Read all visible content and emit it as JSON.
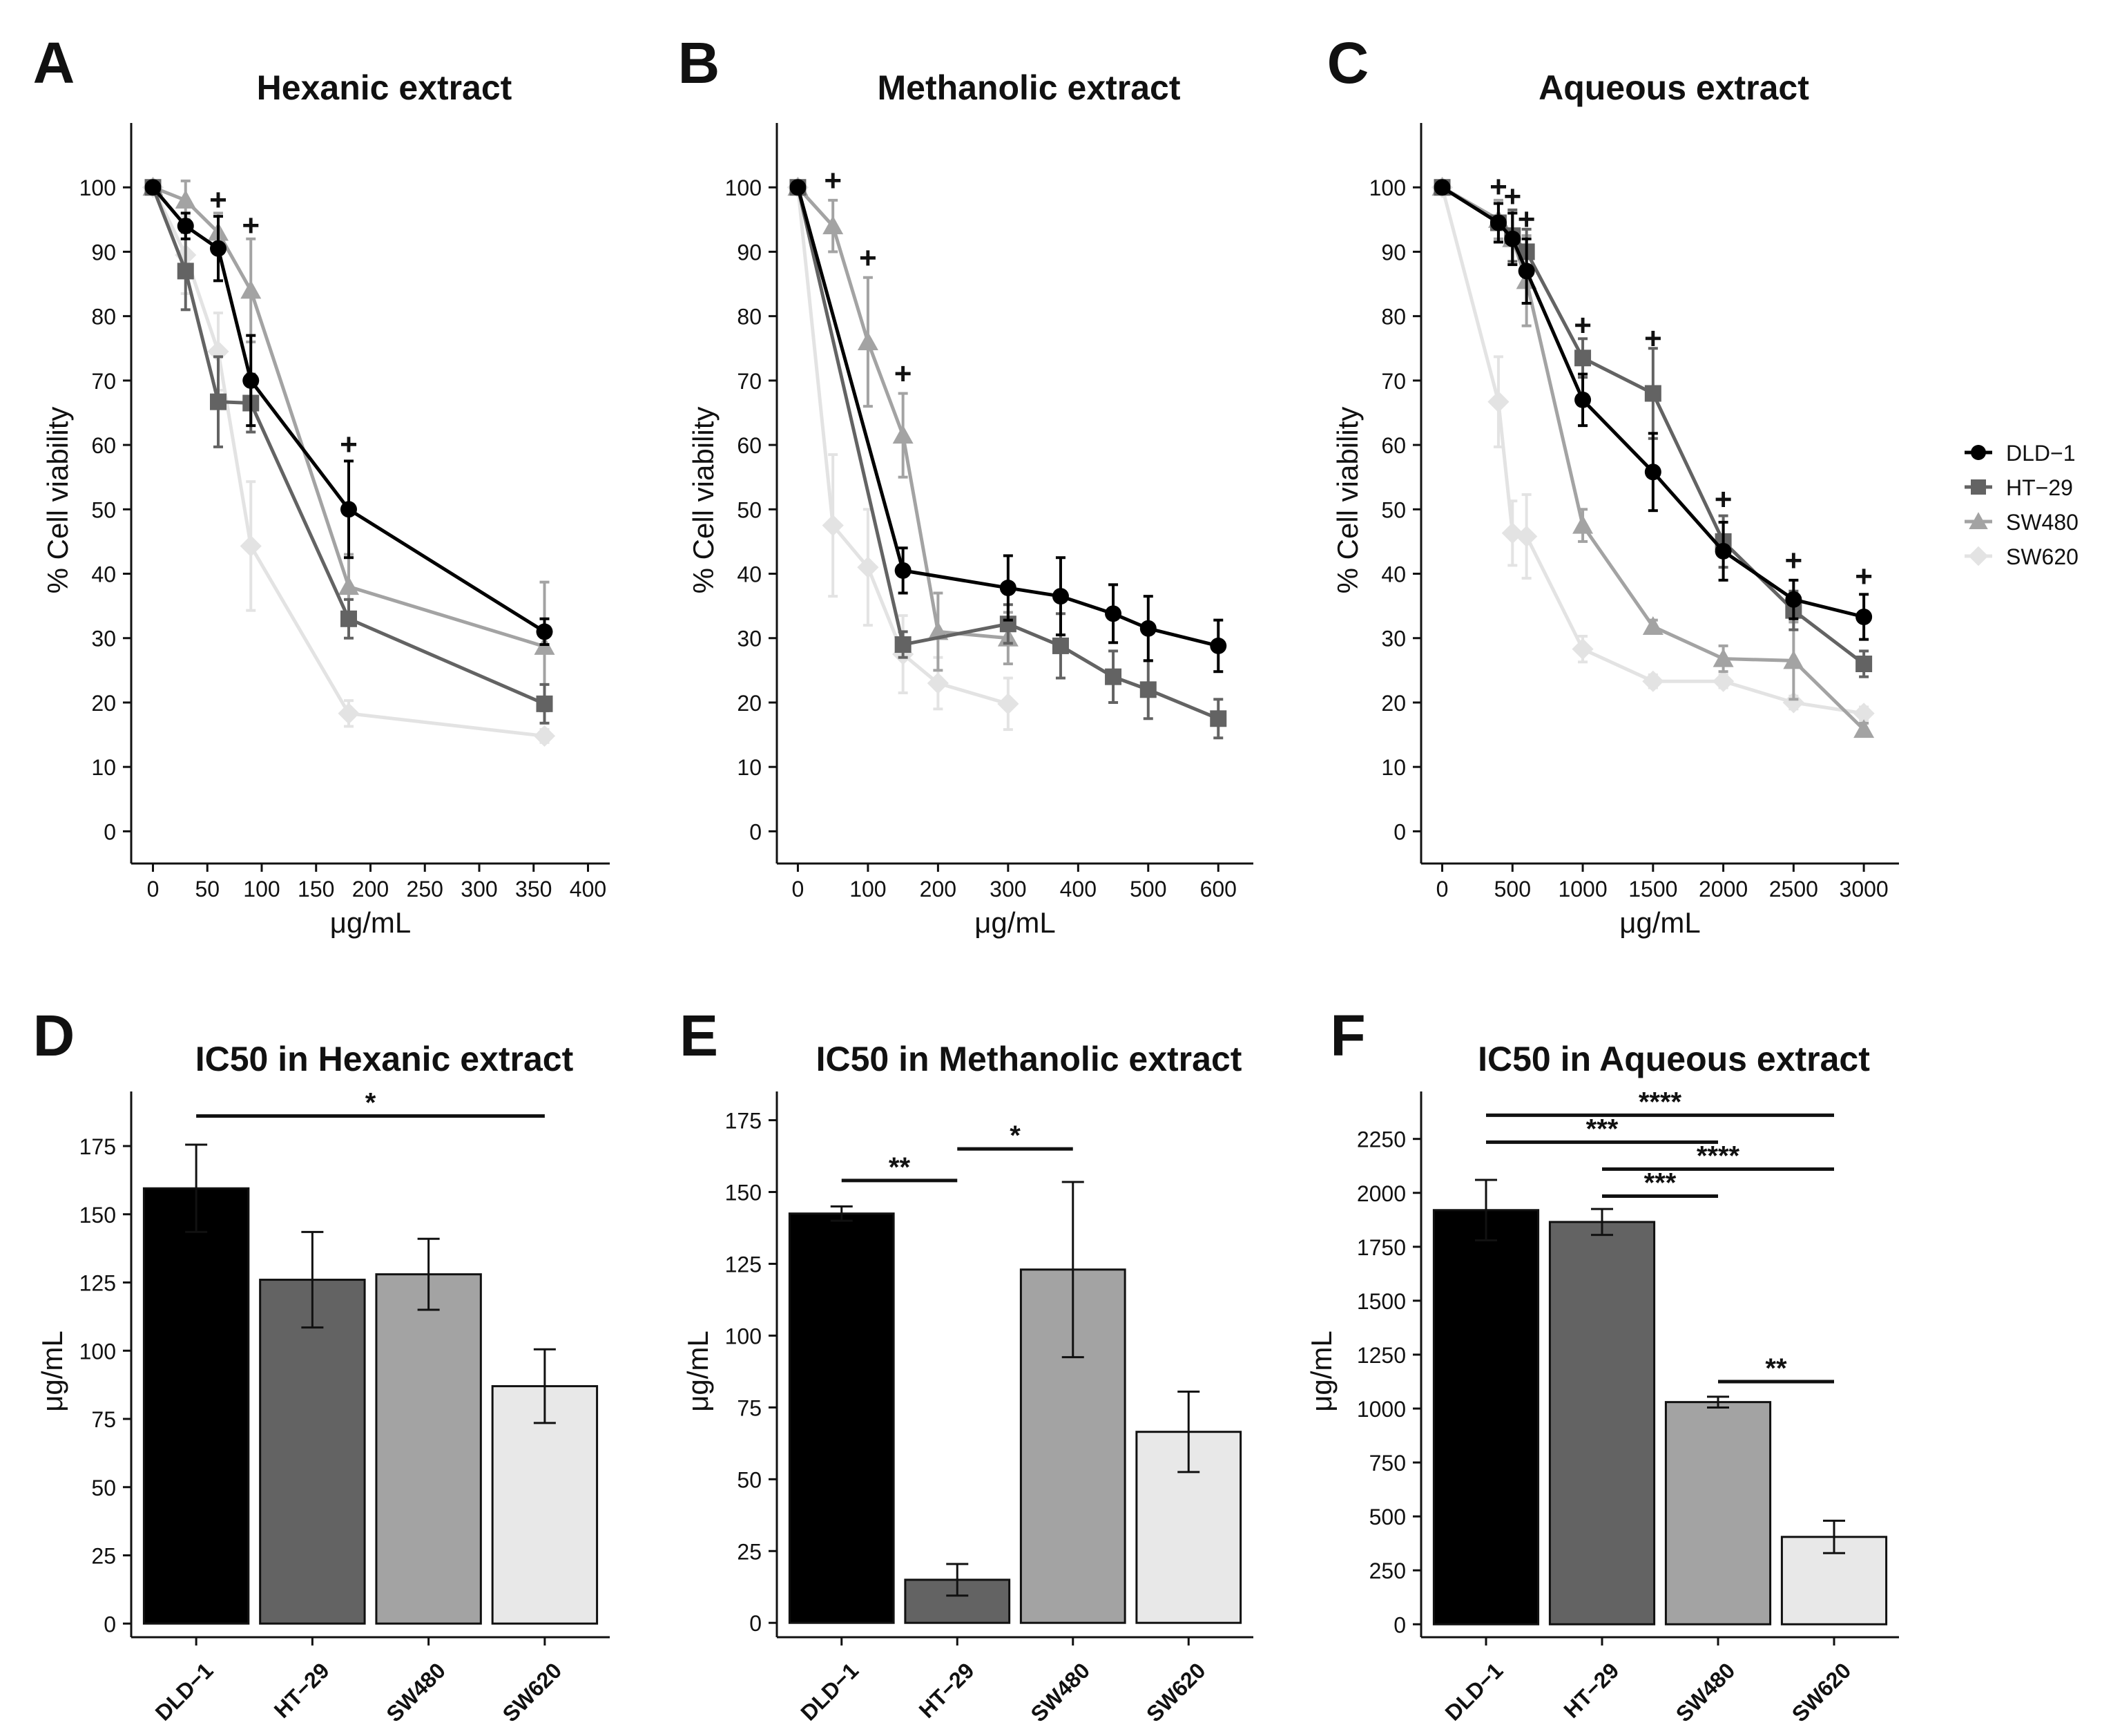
{
  "legend": {
    "placement": "right",
    "entries": [
      {
        "name": "DLD−1",
        "color": "#000000",
        "marker": "circle"
      },
      {
        "name": "HT−29",
        "color": "#636363",
        "marker": "square"
      },
      {
        "name": "SW480",
        "color": "#a3a3a3",
        "marker": "triangle"
      },
      {
        "name": "SW620",
        "color": "#e3e3e3",
        "marker": "diamond"
      }
    ]
  },
  "chart_data": [
    {
      "panel": "A",
      "type": "line",
      "title": "Hexanic extract",
      "xlabel": "μg/mL",
      "ylabel": "% Cell viability",
      "xlim": [
        -20,
        420
      ],
      "ylim": [
        -5,
        110
      ],
      "xticks": [
        0,
        50,
        100,
        150,
        200,
        250,
        300,
        350,
        400
      ],
      "yticks": [
        0,
        10,
        20,
        30,
        40,
        50,
        60,
        70,
        80,
        90,
        100
      ],
      "series": [
        {
          "name": "DLD−1",
          "color": "#000000",
          "marker": "circle",
          "x": [
            0,
            30,
            60,
            90,
            180,
            360
          ],
          "y": [
            100,
            94,
            90.5,
            70,
            50,
            31
          ],
          "err": [
            0,
            2,
            5,
            7,
            7.5,
            2
          ]
        },
        {
          "name": "HT−29",
          "color": "#636363",
          "marker": "square",
          "x": [
            0,
            30,
            60,
            90,
            180,
            360
          ],
          "y": [
            100,
            87,
            66.7,
            66.5,
            33,
            19.8
          ],
          "err": [
            0,
            6,
            7,
            4.5,
            3,
            3
          ]
        },
        {
          "name": "SW480",
          "color": "#a3a3a3",
          "marker": "triangle",
          "x": [
            0,
            30,
            60,
            90,
            180,
            360
          ],
          "y": [
            100,
            98,
            93,
            84,
            38,
            28.7
          ],
          "err": [
            0,
            3,
            3,
            8,
            5,
            10
          ]
        },
        {
          "name": "SW620",
          "color": "#e3e3e3",
          "marker": "diamond",
          "x": [
            0,
            30,
            60,
            90,
            180,
            360
          ],
          "y": [
            100,
            89.5,
            74.5,
            44.3,
            18.3,
            14.8
          ],
          "err": [
            0,
            6,
            6,
            10,
            2,
            1
          ]
        }
      ],
      "annotations": [
        {
          "text": "+",
          "x": 60,
          "y": 98
        },
        {
          "text": "+",
          "x": 90,
          "y": 94
        },
        {
          "text": "+",
          "x": 180,
          "y": 60
        }
      ]
    },
    {
      "panel": "B",
      "type": "line",
      "title": "Methanolic extract",
      "xlabel": "μg/mL",
      "ylabel": "% Cell viability",
      "xlim": [
        -30,
        650
      ],
      "ylim": [
        -5,
        110
      ],
      "xticks": [
        0,
        100,
        200,
        300,
        400,
        500,
        600
      ],
      "yticks": [
        0,
        10,
        20,
        30,
        40,
        50,
        60,
        70,
        80,
        90,
        100
      ],
      "series": [
        {
          "name": "DLD−1",
          "color": "#000000",
          "marker": "circle",
          "x": [
            0,
            150,
            300,
            375,
            450,
            500,
            600
          ],
          "y": [
            100,
            40.5,
            37.8,
            36.5,
            33.8,
            31.5,
            28.8
          ],
          "err": [
            0,
            3.5,
            5,
            6,
            4.5,
            5,
            4
          ]
        },
        {
          "name": "HT−29",
          "color": "#636363",
          "marker": "square",
          "x": [
            0,
            150,
            300,
            375,
            450,
            500,
            600
          ],
          "y": [
            100,
            29,
            32.2,
            28.8,
            24,
            22,
            17.5
          ],
          "err": [
            0,
            2,
            3,
            5,
            4,
            4.5,
            3
          ]
        },
        {
          "name": "SW480",
          "color": "#a3a3a3",
          "marker": "triangle",
          "x": [
            0,
            50,
            100,
            150,
            200,
            300
          ],
          "y": [
            100,
            94,
            76,
            61.5,
            31,
            30
          ],
          "err": [
            0,
            4,
            10,
            6.5,
            6,
            4
          ]
        },
        {
          "name": "SW620",
          "color": "#e3e3e3",
          "marker": "diamond",
          "x": [
            0,
            50,
            100,
            150,
            200,
            300
          ],
          "y": [
            100,
            47.5,
            41,
            27.5,
            23,
            19.8
          ],
          "err": [
            0,
            11,
            9,
            6,
            4,
            4
          ]
        }
      ],
      "annotations": [
        {
          "text": "+",
          "x": 50,
          "y": 101
        },
        {
          "text": "+",
          "x": 100,
          "y": 89
        },
        {
          "text": "+",
          "x": 150,
          "y": 71
        }
      ]
    },
    {
      "panel": "C",
      "type": "line",
      "title": "Aqueous extract",
      "xlabel": "μg/mL",
      "ylabel": "% Cell viability",
      "xlim": [
        -150,
        3250
      ],
      "ylim": [
        -5,
        110
      ],
      "xticks": [
        0,
        500,
        1000,
        1500,
        2000,
        2500,
        3000
      ],
      "yticks": [
        0,
        10,
        20,
        30,
        40,
        50,
        60,
        70,
        80,
        90,
        100
      ],
      "series": [
        {
          "name": "DLD−1",
          "color": "#000000",
          "marker": "circle",
          "x": [
            0,
            400,
            500,
            600,
            1000,
            1500,
            2000,
            2500,
            3000
          ],
          "y": [
            100,
            94.5,
            92,
            87,
            67,
            55.8,
            43.5,
            36,
            33.3
          ],
          "err": [
            0,
            3,
            4,
            5,
            4,
            6,
            4.5,
            3,
            3.5
          ]
        },
        {
          "name": "HT−29",
          "color": "#636363",
          "marker": "square",
          "x": [
            0,
            400,
            500,
            600,
            1000,
            1500,
            2000,
            2500,
            3000
          ],
          "y": [
            100,
            94.5,
            92.5,
            90,
            73.5,
            68,
            45,
            34.3,
            26
          ],
          "err": [
            0,
            3,
            4,
            3.5,
            3,
            7,
            4,
            3,
            2
          ]
        },
        {
          "name": "SW480",
          "color": "#a3a3a3",
          "marker": "triangle",
          "x": [
            0,
            400,
            500,
            600,
            1000,
            1500,
            2000,
            2500,
            3000
          ],
          "y": [
            100,
            95,
            92,
            85.5,
            47.5,
            31.8,
            26.8,
            26.5,
            15.8
          ],
          "err": [
            0,
            3,
            4,
            7,
            2.5,
            1,
            2,
            6,
            1
          ]
        },
        {
          "name": "SW620",
          "color": "#e3e3e3",
          "marker": "diamond",
          "x": [
            0,
            400,
            500,
            600,
            1000,
            1500,
            2000,
            2500,
            3000
          ],
          "y": [
            100,
            66.7,
            46.3,
            45.8,
            28.3,
            23.3,
            23.3,
            20,
            18.3
          ],
          "err": [
            0,
            7,
            5,
            6.5,
            2,
            1,
            1,
            1,
            1
          ]
        }
      ],
      "annotations": [
        {
          "text": "+",
          "x": 400,
          "y": 100
        },
        {
          "text": "+",
          "x": 500,
          "y": 98.5
        },
        {
          "text": "+",
          "x": 600,
          "y": 95
        },
        {
          "text": "+",
          "x": 1000,
          "y": 78.5
        },
        {
          "text": "+",
          "x": 1500,
          "y": 76.5
        },
        {
          "text": "+",
          "x": 2000,
          "y": 51.5
        },
        {
          "text": "+",
          "x": 2500,
          "y": 42
        },
        {
          "text": "+",
          "x": 3000,
          "y": 39.5
        }
      ]
    },
    {
      "panel": "D",
      "type": "bar",
      "title": "IC50 in Hexanic extract",
      "ylabel": "μg/mL",
      "ylim": [
        -5,
        195
      ],
      "yticks": [
        0,
        25,
        50,
        75,
        100,
        125,
        150,
        175
      ],
      "categories": [
        "DLD−1",
        "HT−29",
        "SW480",
        "SW620"
      ],
      "values": [
        159.5,
        126,
        128,
        87
      ],
      "err": [
        16,
        17.5,
        13,
        13.5
      ],
      "colors": [
        "#000000",
        "#636363",
        "#a3a3a3",
        "#e8e8e8"
      ],
      "significance": [
        {
          "from": 0,
          "to": 3,
          "level": 186,
          "label": "*"
        }
      ]
    },
    {
      "panel": "E",
      "type": "bar",
      "title": "IC50 in Methanolic extract",
      "ylabel": "μg/mL",
      "ylim": [
        -5,
        185
      ],
      "yticks": [
        0,
        25,
        50,
        75,
        100,
        125,
        150,
        175
      ],
      "categories": [
        "DLD−1",
        "HT−29",
        "SW480",
        "SW620"
      ],
      "values": [
        142.5,
        15,
        123,
        66.5
      ],
      "err": [
        2.5,
        5.5,
        30.5,
        14
      ],
      "colors": [
        "#000000",
        "#636363",
        "#a3a3a3",
        "#e8e8e8"
      ],
      "significance": [
        {
          "from": 0,
          "to": 1,
          "level": 154,
          "label": "**"
        },
        {
          "from": 1,
          "to": 2,
          "level": 165,
          "label": "*"
        }
      ]
    },
    {
      "panel": "F",
      "type": "bar",
      "title": "IC50 in Aqueous extract",
      "ylabel": "μg/mL",
      "ylim": [
        -60,
        2470
      ],
      "yticks": [
        0,
        250,
        500,
        750,
        1000,
        1250,
        1500,
        1750,
        2000,
        2250
      ],
      "categories": [
        "DLD−1",
        "HT−29",
        "SW480",
        "SW620"
      ],
      "values": [
        1920,
        1865,
        1030,
        405
      ],
      "err": [
        140,
        60,
        25,
        75
      ],
      "colors": [
        "#000000",
        "#636363",
        "#a3a3a3",
        "#e8e8e8"
      ],
      "significance": [
        {
          "from": 0,
          "to": 3,
          "level": 2360,
          "label": "****"
        },
        {
          "from": 0,
          "to": 2,
          "level": 2235,
          "label": "***"
        },
        {
          "from": 1,
          "to": 3,
          "level": 2110,
          "label": "****"
        },
        {
          "from": 1,
          "to": 2,
          "level": 1985,
          "label": "***"
        },
        {
          "from": 2,
          "to": 3,
          "level": 1125,
          "label": "**"
        }
      ]
    }
  ]
}
